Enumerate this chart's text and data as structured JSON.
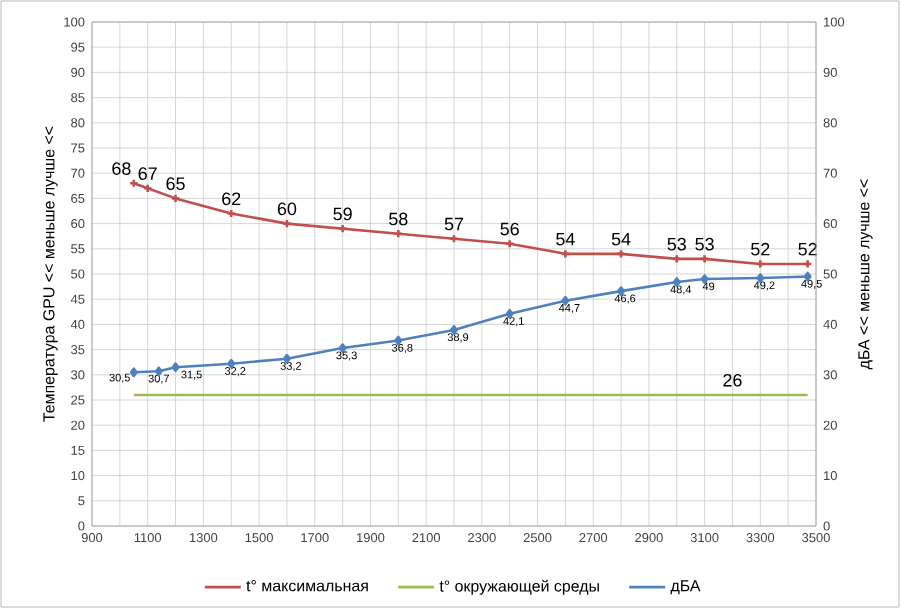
{
  "chart_data": {
    "type": "line",
    "ylabel": "Температура GPU << меньше лучше <<",
    "y2label": "дБА << меньше лучше <<",
    "series": [
      {
        "name": "t° максимальная",
        "color": "#c0504d",
        "marker": "cross",
        "x": [
          1050,
          1100,
          1200,
          1400,
          1600,
          1800,
          2000,
          2200,
          2400,
          2600,
          2800,
          3000,
          3100,
          3300,
          3470
        ],
        "values": [
          68,
          67,
          65,
          62,
          60,
          59,
          58,
          57,
          56,
          54,
          54,
          53,
          53,
          52,
          52
        ],
        "value_labels": [
          "68",
          "67",
          "65",
          "62",
          "60",
          "59",
          "58",
          "57",
          "56",
          "54",
          "54",
          "53",
          "53",
          "52",
          "52"
        ]
      },
      {
        "name": "t° окружающей среды",
        "color": "#9bbb59",
        "marker": "none",
        "x": [
          1050,
          3200,
          3470
        ],
        "values": [
          26,
          26,
          26
        ],
        "value_labels": [
          null,
          "26",
          null
        ]
      },
      {
        "name": "дБА",
        "color": "#4f81bd",
        "marker": "diamond",
        "axis": "y2",
        "x": [
          1050,
          1140,
          1200,
          1400,
          1600,
          1800,
          2000,
          2200,
          2400,
          2600,
          2800,
          3000,
          3100,
          3300,
          3470
        ],
        "values": [
          30.5,
          30.7,
          31.5,
          32.2,
          33.2,
          35.3,
          36.8,
          38.9,
          42.1,
          44.7,
          46.6,
          48.4,
          49,
          49.2,
          49.5
        ],
        "value_labels": [
          "30,5",
          "30,7",
          "31,5",
          "32,2",
          "33,2",
          "35,3",
          "36,8",
          "38,9",
          "42,1",
          "44,7",
          "46,6",
          "48,4",
          "49",
          "49,2",
          "49,5"
        ]
      }
    ],
    "xlim": [
      900,
      3500
    ],
    "xticks": [
      900,
      {
        "value": 1000,
        "label": null
      },
      1100,
      {
        "value": 1200,
        "label": null
      },
      1300,
      {
        "value": 1400,
        "label": null
      },
      1500,
      {
        "value": 1600,
        "label": null
      },
      1700,
      {
        "value": 1800,
        "label": null
      },
      1900,
      {
        "value": 2000,
        "label": null
      },
      2100,
      {
        "value": 2200,
        "label": null
      },
      2300,
      {
        "value": 2400,
        "label": null
      },
      2500,
      {
        "value": 2600,
        "label": null
      },
      2700,
      {
        "value": 2800,
        "label": null
      },
      2900,
      {
        "value": 3000,
        "label": null
      },
      3100,
      {
        "value": 3200,
        "label": null
      },
      3300,
      {
        "value": 3400,
        "label": null
      },
      3500
    ],
    "ylim": [
      0,
      100
    ],
    "yticks": [
      0,
      5,
      10,
      15,
      20,
      25,
      30,
      35,
      40,
      45,
      50,
      55,
      60,
      65,
      70,
      75,
      80,
      85,
      90,
      95,
      100
    ],
    "y2lim": [
      0,
      100
    ],
    "y2ticks": [
      0,
      10,
      20,
      30,
      40,
      50,
      60,
      70,
      80,
      90,
      100
    ],
    "grid": true,
    "legend": "bottom",
    "line_style": "solid"
  }
}
